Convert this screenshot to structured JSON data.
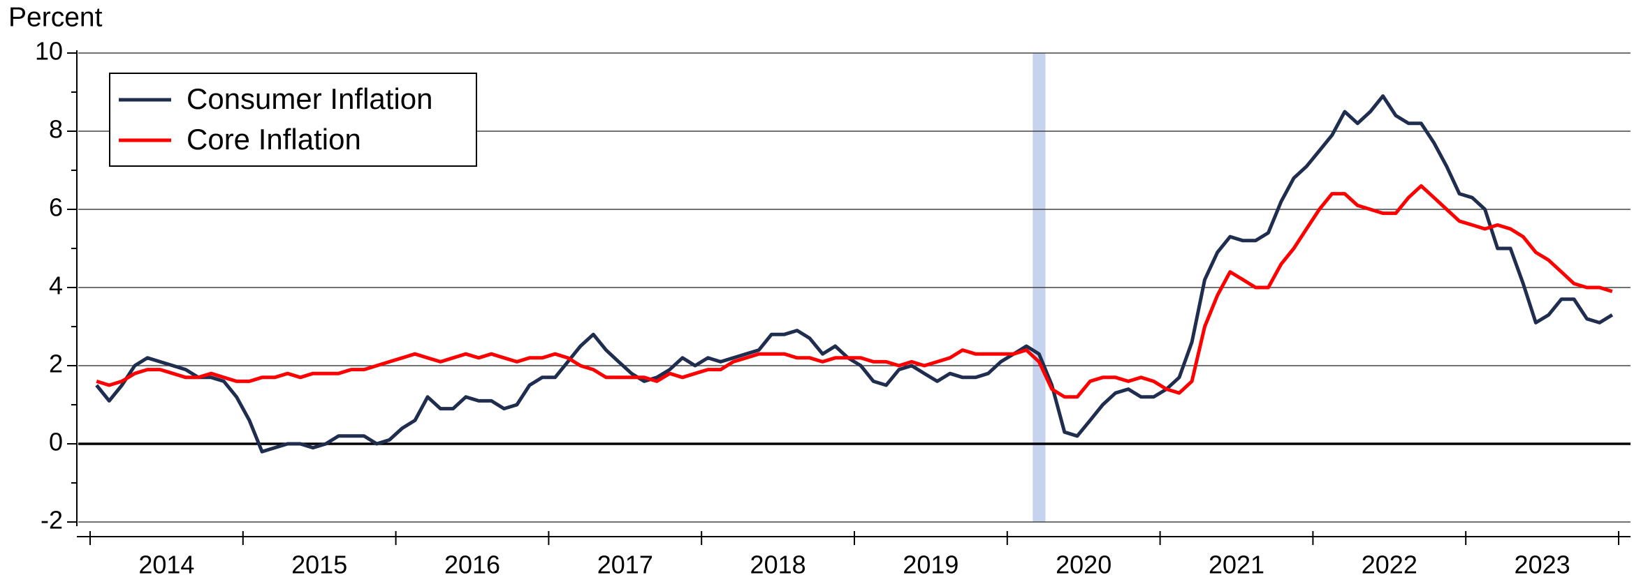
{
  "chart_data": {
    "type": "line",
    "y_axis_label": "Percent",
    "xlim": [
      2014,
      2024
    ],
    "xticks": [
      2014,
      2015,
      2016,
      2017,
      2018,
      2019,
      2020,
      2021,
      2022,
      2023,
      2024
    ],
    "xlabels": [
      {
        "value": 2014.5,
        "label": "2014"
      },
      {
        "value": 2015.5,
        "label": "2015"
      },
      {
        "value": 2016.5,
        "label": "2016"
      },
      {
        "value": 2017.5,
        "label": "2017"
      },
      {
        "value": 2018.5,
        "label": "2018"
      },
      {
        "value": 2019.5,
        "label": "2019"
      },
      {
        "value": 2020.5,
        "label": "2020"
      },
      {
        "value": 2021.5,
        "label": "2021"
      },
      {
        "value": 2022.5,
        "label": "2022"
      },
      {
        "value": 2023.5,
        "label": "2023"
      }
    ],
    "ylim": [
      -2,
      10
    ],
    "yticks": [
      -2,
      0,
      2,
      4,
      6,
      8,
      10
    ],
    "y_minor_ticks": [
      -1,
      1,
      3,
      5,
      7,
      9
    ],
    "grid": true,
    "legend": "upper left",
    "shading": {
      "x": [
        2020.167,
        2020.25
      ],
      "color": "#c5d3ef"
    },
    "x": [
      2014.042,
      2014.125,
      2014.208,
      2014.292,
      2014.375,
      2014.458,
      2014.542,
      2014.625,
      2014.708,
      2014.792,
      2014.875,
      2014.958,
      2015.042,
      2015.125,
      2015.208,
      2015.292,
      2015.375,
      2015.458,
      2015.542,
      2015.625,
      2015.708,
      2015.792,
      2015.875,
      2015.958,
      2016.042,
      2016.125,
      2016.208,
      2016.292,
      2016.375,
      2016.458,
      2016.542,
      2016.625,
      2016.708,
      2016.792,
      2016.875,
      2016.958,
      2017.042,
      2017.125,
      2017.208,
      2017.292,
      2017.375,
      2017.458,
      2017.542,
      2017.625,
      2017.708,
      2017.792,
      2017.875,
      2017.958,
      2018.042,
      2018.125,
      2018.208,
      2018.292,
      2018.375,
      2018.458,
      2018.542,
      2018.625,
      2018.708,
      2018.792,
      2018.875,
      2018.958,
      2019.042,
      2019.125,
      2019.208,
      2019.292,
      2019.375,
      2019.458,
      2019.542,
      2019.625,
      2019.708,
      2019.792,
      2019.875,
      2019.958,
      2020.042,
      2020.125,
      2020.208,
      2020.292,
      2020.375,
      2020.458,
      2020.542,
      2020.625,
      2020.708,
      2020.792,
      2020.875,
      2020.958,
      2021.042,
      2021.125,
      2021.208,
      2021.292,
      2021.375,
      2021.458,
      2021.542,
      2021.625,
      2021.708,
      2021.792,
      2021.875,
      2021.958,
      2022.042,
      2022.125,
      2022.208,
      2022.292,
      2022.375,
      2022.458,
      2022.542,
      2022.625,
      2022.708,
      2022.792,
      2022.875,
      2022.958,
      2023.042,
      2023.125,
      2023.208,
      2023.292,
      2023.375,
      2023.458,
      2023.542,
      2023.625,
      2023.708,
      2023.792,
      2023.875,
      2023.958
    ],
    "series": [
      {
        "name": "Consumer Inflation",
        "color": "#1f2d4f",
        "values": [
          1.5,
          1.1,
          1.5,
          2.0,
          2.2,
          2.1,
          2.0,
          1.9,
          1.7,
          1.7,
          1.6,
          1.2,
          0.6,
          -0.2,
          -0.1,
          0.0,
          0.0,
          -0.1,
          0.0,
          0.2,
          0.2,
          0.2,
          0.0,
          0.1,
          0.4,
          0.6,
          1.2,
          0.9,
          0.9,
          1.2,
          1.1,
          1.1,
          0.9,
          1.0,
          1.5,
          1.7,
          1.7,
          2.1,
          2.5,
          2.8,
          2.4,
          2.1,
          1.8,
          1.6,
          1.7,
          1.9,
          2.2,
          2.0,
          2.2,
          2.1,
          2.2,
          2.3,
          2.4,
          2.8,
          2.8,
          2.9,
          2.7,
          2.3,
          2.5,
          2.2,
          2.0,
          1.6,
          1.5,
          1.9,
          2.0,
          1.8,
          1.6,
          1.8,
          1.7,
          1.7,
          1.8,
          2.1,
          2.3,
          2.5,
          2.3,
          1.5,
          0.3,
          0.2,
          0.6,
          1.0,
          1.3,
          1.4,
          1.2,
          1.2,
          1.4,
          1.7,
          2.6,
          4.2,
          4.9,
          5.3,
          5.2,
          5.2,
          5.4,
          6.2,
          6.8,
          7.1,
          7.5,
          7.9,
          8.5,
          8.2,
          8.5,
          8.9,
          8.4,
          8.2,
          8.2,
          7.7,
          7.1,
          6.4,
          6.3,
          6.0,
          5.0,
          5.0,
          4.1,
          3.1,
          3.3,
          3.7,
          3.7,
          3.2,
          3.1,
          3.3
        ]
      },
      {
        "name": "Core Inflation",
        "color": "#ff0000",
        "values": [
          1.6,
          1.5,
          1.6,
          1.8,
          1.9,
          1.9,
          1.8,
          1.7,
          1.7,
          1.8,
          1.7,
          1.6,
          1.6,
          1.7,
          1.7,
          1.8,
          1.7,
          1.8,
          1.8,
          1.8,
          1.9,
          1.9,
          2.0,
          2.1,
          2.2,
          2.3,
          2.2,
          2.1,
          2.2,
          2.3,
          2.2,
          2.3,
          2.2,
          2.1,
          2.2,
          2.2,
          2.3,
          2.2,
          2.0,
          1.9,
          1.7,
          1.7,
          1.7,
          1.7,
          1.6,
          1.8,
          1.7,
          1.8,
          1.9,
          1.9,
          2.1,
          2.2,
          2.3,
          2.3,
          2.3,
          2.2,
          2.2,
          2.1,
          2.2,
          2.2,
          2.2,
          2.1,
          2.1,
          2.0,
          2.1,
          2.0,
          2.1,
          2.2,
          2.4,
          2.3,
          2.3,
          2.3,
          2.3,
          2.4,
          2.1,
          1.4,
          1.2,
          1.2,
          1.6,
          1.7,
          1.7,
          1.6,
          1.7,
          1.6,
          1.4,
          1.3,
          1.6,
          3.0,
          3.8,
          4.4,
          4.2,
          4.0,
          4.0,
          4.6,
          5.0,
          5.5,
          6.0,
          6.4,
          6.4,
          6.1,
          6.0,
          5.9,
          5.9,
          6.3,
          6.6,
          6.3,
          6.0,
          5.7,
          5.6,
          5.5,
          5.6,
          5.5,
          5.3,
          4.9,
          4.7,
          4.4,
          4.1,
          4.0,
          4.0,
          3.9
        ]
      }
    ]
  }
}
